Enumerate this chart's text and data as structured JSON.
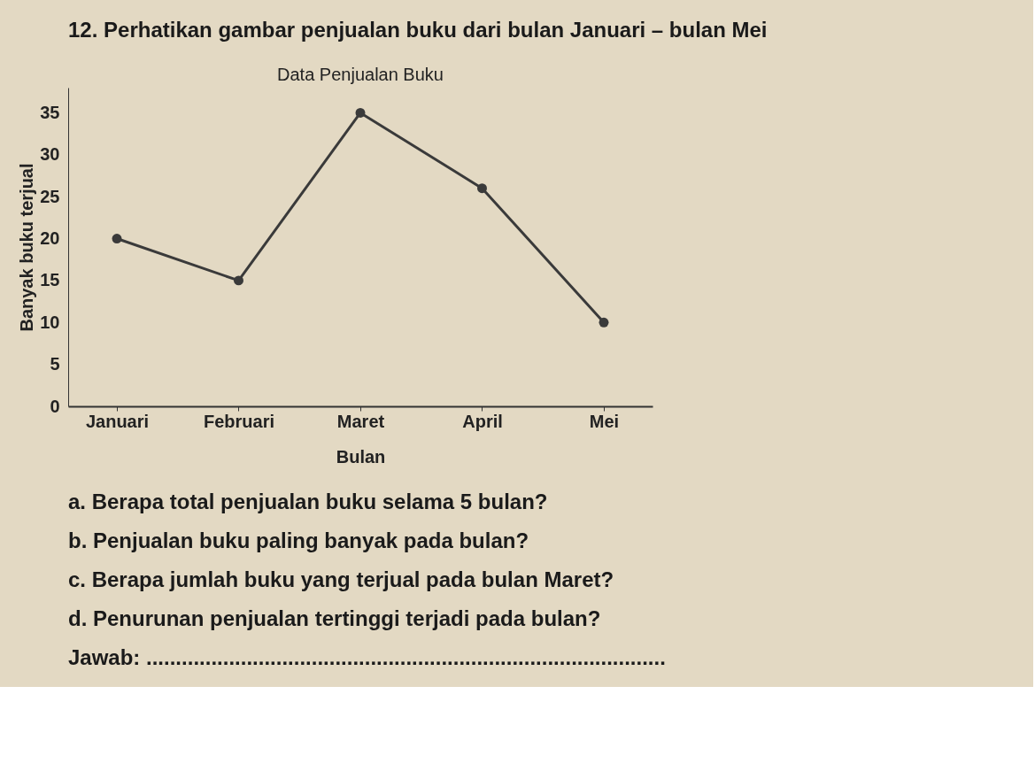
{
  "chart_data": {
    "type": "line",
    "title": "Data Penjualan Buku",
    "xlabel": "Bulan",
    "ylabel": "Banyak buku terjual",
    "categories": [
      "Januari",
      "Februari",
      "Maret",
      "April",
      "Mei"
    ],
    "series": [
      {
        "color": "#3a3a3a",
        "values": [
          20,
          15,
          35,
          26,
          10
        ]
      }
    ],
    "ylim": [
      0,
      38
    ],
    "yticks": [
      0,
      5,
      10,
      15,
      20,
      25,
      30,
      35
    ],
    "grid": false,
    "legend": false,
    "marker": "circle",
    "line_style": "solid",
    "annotations": [
      "12. Perhatikan gambar penjualan buku dari bulan Januari – bulan Mei",
      "a. Berapa total penjualan buku selama 5 bulan?",
      "b. Penjualan buku paling banyak pada bulan?",
      "c. Berapa jumlah buku yang terjual pada bulan Maret?",
      "d. Penurunan penjualan tertinggi terjadi pada bulan?",
      "Jawab: ........................................................................................"
    ]
  }
}
